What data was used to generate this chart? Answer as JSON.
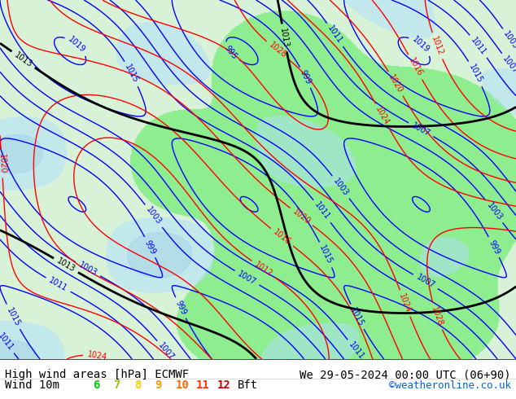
{
  "title_left": "High wind areas [hPa] ECMWF",
  "title_right": "We 29-05-2024 00:00 UTC (06+90)",
  "label_wind": "Wind 10m",
  "bft_label": "Bft",
  "bft_values": [
    "6",
    "7",
    "8",
    "9",
    "10",
    "11",
    "12"
  ],
  "bft_colors": [
    "#00cc00",
    "#99cc00",
    "#ffcc00",
    "#ff9900",
    "#ff6600",
    "#ff3300",
    "#cc0000"
  ],
  "copyright": "©weatheronline.co.uk",
  "copyright_color": "#0066cc",
  "bg_color": "#ffffff",
  "map_bg": "#90ee90",
  "label_fontsize": 10,
  "legend_fontsize": 10,
  "title_color": "#000000",
  "figsize": [
    6.34,
    4.9
  ],
  "dpi": 100,
  "map_image_placeholder": true,
  "bottom_bar_height": 0.1
}
